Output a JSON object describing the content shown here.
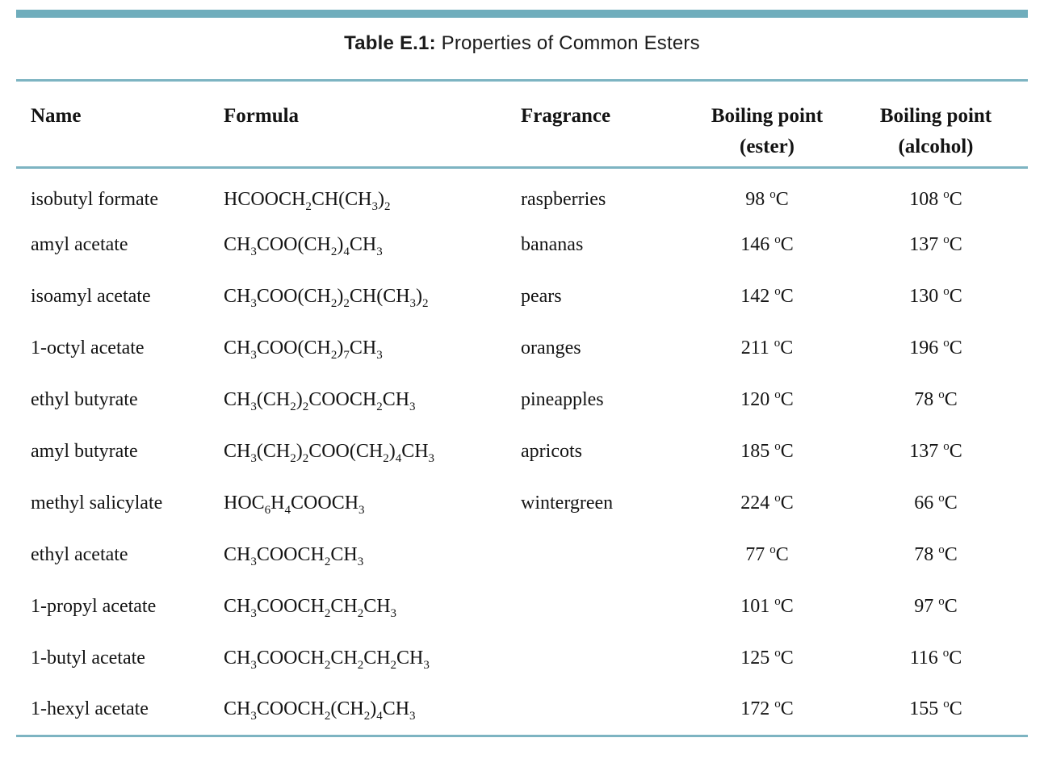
{
  "header": {
    "title_label": "Table E.1:",
    "title_text": "Properties of Common Esters"
  },
  "colors": {
    "accent_bar": "#6fadbc",
    "rule_line": "#7db4c2",
    "text": "#141414"
  },
  "table": {
    "headers": {
      "name": "Name",
      "formula": "Formula",
      "fragrance": "Fragrance",
      "bp_ester_line1": "Boiling point",
      "bp_ester_line2": "(ester)",
      "bp_alcohol_line1": "Boiling point",
      "bp_alcohol_line2": "(alcohol)"
    },
    "rows": [
      {
        "name": "isobutyl formate",
        "formula": "HCOOCH_2_CH(CH_3_)_2_",
        "fragrance": "raspberries",
        "bp_ester": "98 ^o^C",
        "bp_alcohol": "108 ^o^C"
      },
      {
        "name": "amyl acetate",
        "formula": "CH_3_COO(CH_2_)_4_CH_3_",
        "fragrance": "bananas",
        "bp_ester": "146 ^o^C",
        "bp_alcohol": "137 ^o^C"
      },
      {
        "name": "isoamyl acetate",
        "formula": "CH_3_COO(CH_2_)_2_CH(CH_3_)_2_",
        "fragrance": "pears",
        "bp_ester": "142 ^o^C",
        "bp_alcohol": "130 ^o^C"
      },
      {
        "name": "1-octyl acetate",
        "formula": "CH_3_COO(CH_2_)_7_CH_3_",
        "fragrance": "oranges",
        "bp_ester": "211 ^o^C",
        "bp_alcohol": "196 ^o^C"
      },
      {
        "name": "ethyl butyrate",
        "formula": "CH_3_(CH_2_)_2_COOCH_2_CH_3_",
        "fragrance": "pineapples",
        "bp_ester": "120 ^o^C",
        "bp_alcohol": "78 ^o^C"
      },
      {
        "name": "amyl butyrate",
        "formula": "CH_3_(CH_2_)_2_COO(CH_2_)_4_CH_3_",
        "fragrance": "apricots",
        "bp_ester": "185 ^o^C",
        "bp_alcohol": "137 ^o^C"
      },
      {
        "name": "methyl salicylate",
        "formula": "HOC_6_H_4_COOCH_3_",
        "fragrance": "wintergreen",
        "bp_ester": "224 ^o^C",
        "bp_alcohol": "66 ^o^C"
      },
      {
        "name": "ethyl acetate",
        "formula": "CH_3_COOCH_2_CH_3_",
        "fragrance": "",
        "bp_ester": "77 ^o^C",
        "bp_alcohol": "78 ^o^C"
      },
      {
        "name": "1-propyl acetate",
        "formula": "CH_3_COOCH_2_CH_2_CH_3_",
        "fragrance": "",
        "bp_ester": "101 ^o^C",
        "bp_alcohol": "97 ^o^C"
      },
      {
        "name": "1-butyl acetate",
        "formula": "CH_3_COOCH_2_CH_2_CH_2_CH_3_",
        "fragrance": "",
        "bp_ester": "125 ^o^C",
        "bp_alcohol": "116 ^o^C"
      },
      {
        "name": "1-hexyl acetate",
        "formula": "CH_3_COOCH_2_(CH_2_)_4_CH_3_",
        "fragrance": "",
        "bp_ester": "172 ^o^C",
        "bp_alcohol": "155 ^o^C"
      }
    ]
  }
}
